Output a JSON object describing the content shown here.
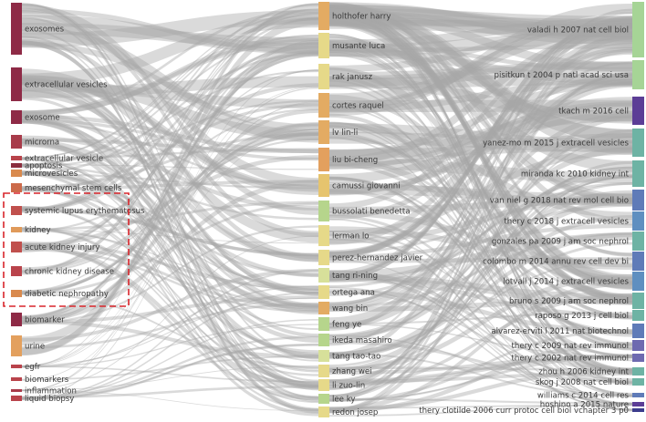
{
  "colors": {
    "link": "#a8a8a8",
    "highlight_box": "#d9252b",
    "keyword_dark": "#8e2a46",
    "keyword_red": "#c0504d",
    "keyword_orange": "#d98a4e",
    "author_yellow": "#e6d989",
    "author_orange": "#e3ab63",
    "author_green": "#b6d58c",
    "ref_green": "#a6d496",
    "ref_teal": "#6eb3a4",
    "ref_blue": "#5f7bb8",
    "ref_purple": "#5c3d96"
  },
  "keywords": [
    {
      "label": "exosomes",
      "color": "#8e2a46"
    },
    {
      "label": "extracellular vesicles",
      "color": "#8e2a46"
    },
    {
      "label": "exosome",
      "color": "#8e2a46"
    },
    {
      "label": "microrna",
      "color": "#a83b4a"
    },
    {
      "label": "extracellular vesicle",
      "color": "#b9434b"
    },
    {
      "label": "apoptosis",
      "color": "#8a2d3d"
    },
    {
      "label": "microvesicles",
      "color": "#d98a4e"
    },
    {
      "label": "mesenchymal stem cells",
      "color": "#cc6a4a"
    },
    {
      "label": "systemic lupus erythematosus",
      "color": "#c0504d"
    },
    {
      "label": "kidney",
      "color": "#e09a5a"
    },
    {
      "label": "acute kidney injury",
      "color": "#c0504d"
    },
    {
      "label": "chronic kidney disease",
      "color": "#b9434b"
    },
    {
      "label": "diabetic nephropathy",
      "color": "#d98a4e"
    },
    {
      "label": "biomarker",
      "color": "#8e2a46"
    },
    {
      "label": "urine",
      "color": "#e3a05e"
    },
    {
      "label": "egfr",
      "color": "#b9434b"
    },
    {
      "label": "biomarkers",
      "color": "#b9434b"
    },
    {
      "label": "inflammation",
      "color": "#a83b4a"
    },
    {
      "label": "liquid biopsy",
      "color": "#b9434b"
    }
  ],
  "authors": [
    {
      "label": "holthofer harry",
      "color": "#e3ab63"
    },
    {
      "label": "musante luca",
      "color": "#e6d989"
    },
    {
      "label": "rak janusz",
      "color": "#e6d989"
    },
    {
      "label": "cortes raquel",
      "color": "#e3ab63"
    },
    {
      "label": "lv lin-li",
      "color": "#e3ab63"
    },
    {
      "label": "liu bi-cheng",
      "color": "#e3a05e"
    },
    {
      "label": "camussi giovanni",
      "color": "#e6c46e"
    },
    {
      "label": "bussolati benedetta",
      "color": "#b6d58c"
    },
    {
      "label": "lerman lo",
      "color": "#e6d989"
    },
    {
      "label": "perez-hernandez javier",
      "color": "#e6d989"
    },
    {
      "label": "tang ri-ning",
      "color": "#d7e09a"
    },
    {
      "label": "ortega ana",
      "color": "#e6d989"
    },
    {
      "label": "wang bin",
      "color": "#e3ab63"
    },
    {
      "label": "feng ye",
      "color": "#b6d58c"
    },
    {
      "label": "ikeda masahiro",
      "color": "#b6d58c"
    },
    {
      "label": "tang tao-tao",
      "color": "#d7e09a"
    },
    {
      "label": "zhang wei",
      "color": "#e6d989"
    },
    {
      "label": "li zuo-lin",
      "color": "#e6d989"
    },
    {
      "label": "lee ky",
      "color": "#b6d58c"
    },
    {
      "label": "redon josep",
      "color": "#e6d989"
    }
  ],
  "references": [
    {
      "label": "valadi h 2007 nat cell biol",
      "color": "#a6d496"
    },
    {
      "label": "pisitkun t 2004 p natl acad sci usa",
      "color": "#a6d496"
    },
    {
      "label": "tkach m 2016 cell",
      "color": "#5c3d96"
    },
    {
      "label": "yanez-mo m 2015 j extracell vesicles",
      "color": "#6eb3a4"
    },
    {
      "label": "miranda kc 2010 kidney int",
      "color": "#6eb3a4"
    },
    {
      "label": "van niel g 2018 nat rev mol cell bio",
      "color": "#5f7bb8"
    },
    {
      "label": "thery c 2018 j extracell vesicles",
      "color": "#5f8fc0"
    },
    {
      "label": "gonzales pa 2009 j am soc nephrol",
      "color": "#6eb3a4"
    },
    {
      "label": "colombo m 2014 annu rev cell dev bi",
      "color": "#5f7bb8"
    },
    {
      "label": "lotvall j 2014 j extracell vesicles",
      "color": "#5f8fc0"
    },
    {
      "label": "bruno s 2009 j am soc nephrol",
      "color": "#6eb3a4"
    },
    {
      "label": "raposo g 2013 j cell biol",
      "color": "#6eb3a4"
    },
    {
      "label": "alvarez-erviti l 2011 nat biotechnol",
      "color": "#5f7bb8"
    },
    {
      "label": "thery c 2009 nat rev immunol",
      "color": "#6e6ab0"
    },
    {
      "label": "thery c 2002 nat rev immunol",
      "color": "#6e6ab0"
    },
    {
      "label": "zhou h 2006 kidney int",
      "color": "#6eb3a4"
    },
    {
      "label": "skog j 2008 nat cell biol",
      "color": "#6eb3a4"
    },
    {
      "label": "williams c 2014 cell res",
      "color": "#5f7bb8"
    },
    {
      "label": "hoshino a 2015 nature",
      "color": "#5c3d96"
    },
    {
      "label": "thery clotilde 2006 curr protoc cell biol vchapter 3 p0",
      "color": "#3c3c8c"
    }
  ]
}
